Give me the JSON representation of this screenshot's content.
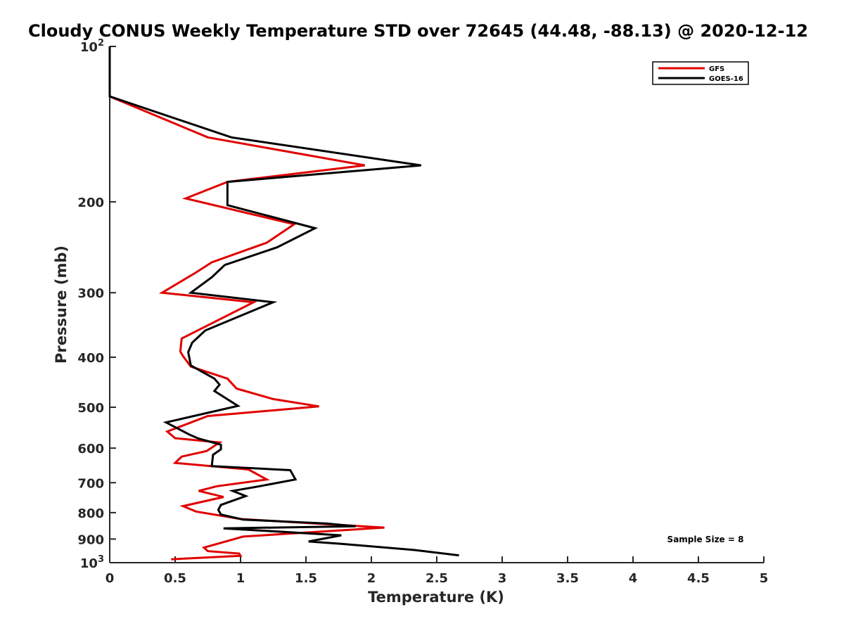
{
  "chart_data": {
    "type": "line",
    "title": "Cloudy CONUS Weekly Temperature STD over 72645 (44.48, -88.13) @ 2020-12-12",
    "xlabel": "Temperature (K)",
    "ylabel": "Pressure (mb)",
    "xlim": [
      0,
      5
    ],
    "ylim": [
      100,
      1000
    ],
    "y_scale": "log",
    "y_reversed": true,
    "x_ticks": [
      "0",
      "0.5",
      "1",
      "1.5",
      "2",
      "2.5",
      "3",
      "3.5",
      "4",
      "4.5",
      "5"
    ],
    "x_tick_values": [
      0,
      0.5,
      1,
      1.5,
      2,
      2.5,
      3,
      3.5,
      4,
      4.5,
      5
    ],
    "y_ticks": [
      {
        "value": 100,
        "base": "10",
        "exp": "2"
      },
      {
        "value": 200,
        "label": "200"
      },
      {
        "value": 300,
        "label": "300"
      },
      {
        "value": 400,
        "label": "400"
      },
      {
        "value": 500,
        "label": "500"
      },
      {
        "value": 600,
        "label": "600"
      },
      {
        "value": 700,
        "label": "700"
      },
      {
        "value": 800,
        "label": "800"
      },
      {
        "value": 900,
        "label": "900"
      },
      {
        "value": 1000,
        "base": "10",
        "exp": "3"
      }
    ],
    "grid": false,
    "legend_position": "top-right",
    "annotation": "Sample Size = 8",
    "series": [
      {
        "name": "GFS",
        "color": "#e00000",
        "points": [
          [
            0,
            100
          ],
          [
            0,
            125
          ],
          [
            0.75,
            150
          ],
          [
            1.95,
            170
          ],
          [
            0.9,
            183
          ],
          [
            0.58,
            197
          ],
          [
            1.41,
            221
          ],
          [
            1.2,
            240
          ],
          [
            0.78,
            262
          ],
          [
            0.65,
            275
          ],
          [
            0.4,
            300
          ],
          [
            1.1,
            313
          ],
          [
            0.55,
            368
          ],
          [
            0.54,
            390
          ],
          [
            0.56,
            398
          ],
          [
            0.62,
            417
          ],
          [
            0.9,
            440
          ],
          [
            0.97,
            460
          ],
          [
            1.25,
            482
          ],
          [
            1.6,
            498
          ],
          [
            0.75,
            520
          ],
          [
            0.49,
            551
          ],
          [
            0.44,
            557
          ],
          [
            0.5,
            574
          ],
          [
            0.84,
            585
          ],
          [
            0.74,
            608
          ],
          [
            0.55,
            623
          ],
          [
            0.5,
            641
          ],
          [
            1.06,
            660
          ],
          [
            1.2,
            690
          ],
          [
            0.82,
            711
          ],
          [
            0.68,
            726
          ],
          [
            0.87,
            746
          ],
          [
            0.56,
            777
          ],
          [
            0.66,
            796
          ],
          [
            1.0,
            823
          ],
          [
            1.34,
            833
          ],
          [
            2.1,
            855
          ],
          [
            1.02,
            890
          ],
          [
            0.72,
            935
          ],
          [
            0.75,
            950
          ],
          [
            0.99,
            960
          ],
          [
            1.0,
            970
          ],
          [
            0.47,
            985
          ]
        ]
      },
      {
        "name": "GOES-16",
        "color": "#000000",
        "points": [
          [
            0,
            100
          ],
          [
            0,
            125
          ],
          [
            0.93,
            150
          ],
          [
            2.38,
            170
          ],
          [
            0.9,
            183
          ],
          [
            0.9,
            203
          ],
          [
            1.57,
            225
          ],
          [
            1.28,
            245
          ],
          [
            0.88,
            265
          ],
          [
            0.78,
            280
          ],
          [
            0.62,
            300
          ],
          [
            1.25,
            313
          ],
          [
            0.73,
            355
          ],
          [
            0.63,
            375
          ],
          [
            0.6,
            391
          ],
          [
            0.62,
            415
          ],
          [
            0.8,
            440
          ],
          [
            0.84,
            452
          ],
          [
            0.8,
            465
          ],
          [
            0.98,
            497
          ],
          [
            0.43,
            535
          ],
          [
            0.61,
            565
          ],
          [
            0.68,
            575
          ],
          [
            0.85,
            591
          ],
          [
            0.85,
            603
          ],
          [
            0.79,
            618
          ],
          [
            0.78,
            650
          ],
          [
            1.38,
            662
          ],
          [
            1.42,
            690
          ],
          [
            1.12,
            713
          ],
          [
            0.94,
            726
          ],
          [
            1.04,
            743
          ],
          [
            0.85,
            773
          ],
          [
            0.83,
            790
          ],
          [
            0.85,
            807
          ],
          [
            1.02,
            825
          ],
          [
            1.66,
            840
          ],
          [
            1.88,
            850
          ],
          [
            0.87,
            858
          ],
          [
            1.77,
            885
          ],
          [
            1.52,
            910
          ],
          [
            1.78,
            920
          ],
          [
            2.33,
            945
          ],
          [
            2.67,
            968
          ]
        ]
      }
    ]
  }
}
